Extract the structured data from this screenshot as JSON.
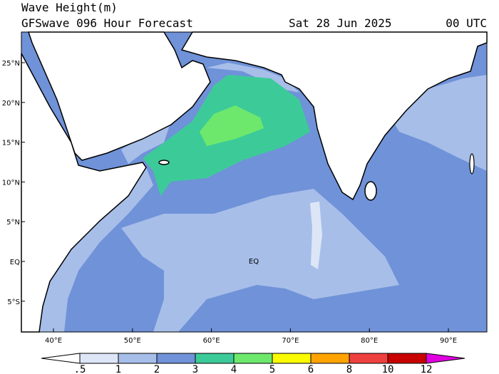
{
  "header": {
    "title": "Wave Height(m)",
    "subtitle": "GFSwave 096 Hour Forecast",
    "date": "Sat 28 Jun 2025",
    "time": "00 UTC"
  },
  "map": {
    "lat_labels": [
      "25°N",
      "20°N",
      "15°N",
      "10°N",
      "5°N",
      "EQ",
      "5°S"
    ],
    "lon_labels": [
      "40°E",
      "50°E",
      "60°E",
      "70°E",
      "80°E",
      "90°E"
    ],
    "equator_label": "EQ"
  },
  "legend": {
    "labels": [
      ".5",
      "1",
      "2",
      "3",
      "4",
      "5",
      "6",
      "8",
      "10",
      "12"
    ],
    "colors": [
      "#ffffff",
      "#dde6f6",
      "#a7bee9",
      "#6f92d8",
      "#3ccb98",
      "#6de86c",
      "#fafa00",
      "#ffa300",
      "#ef4040",
      "#c80000",
      "#e000e0"
    ]
  }
}
